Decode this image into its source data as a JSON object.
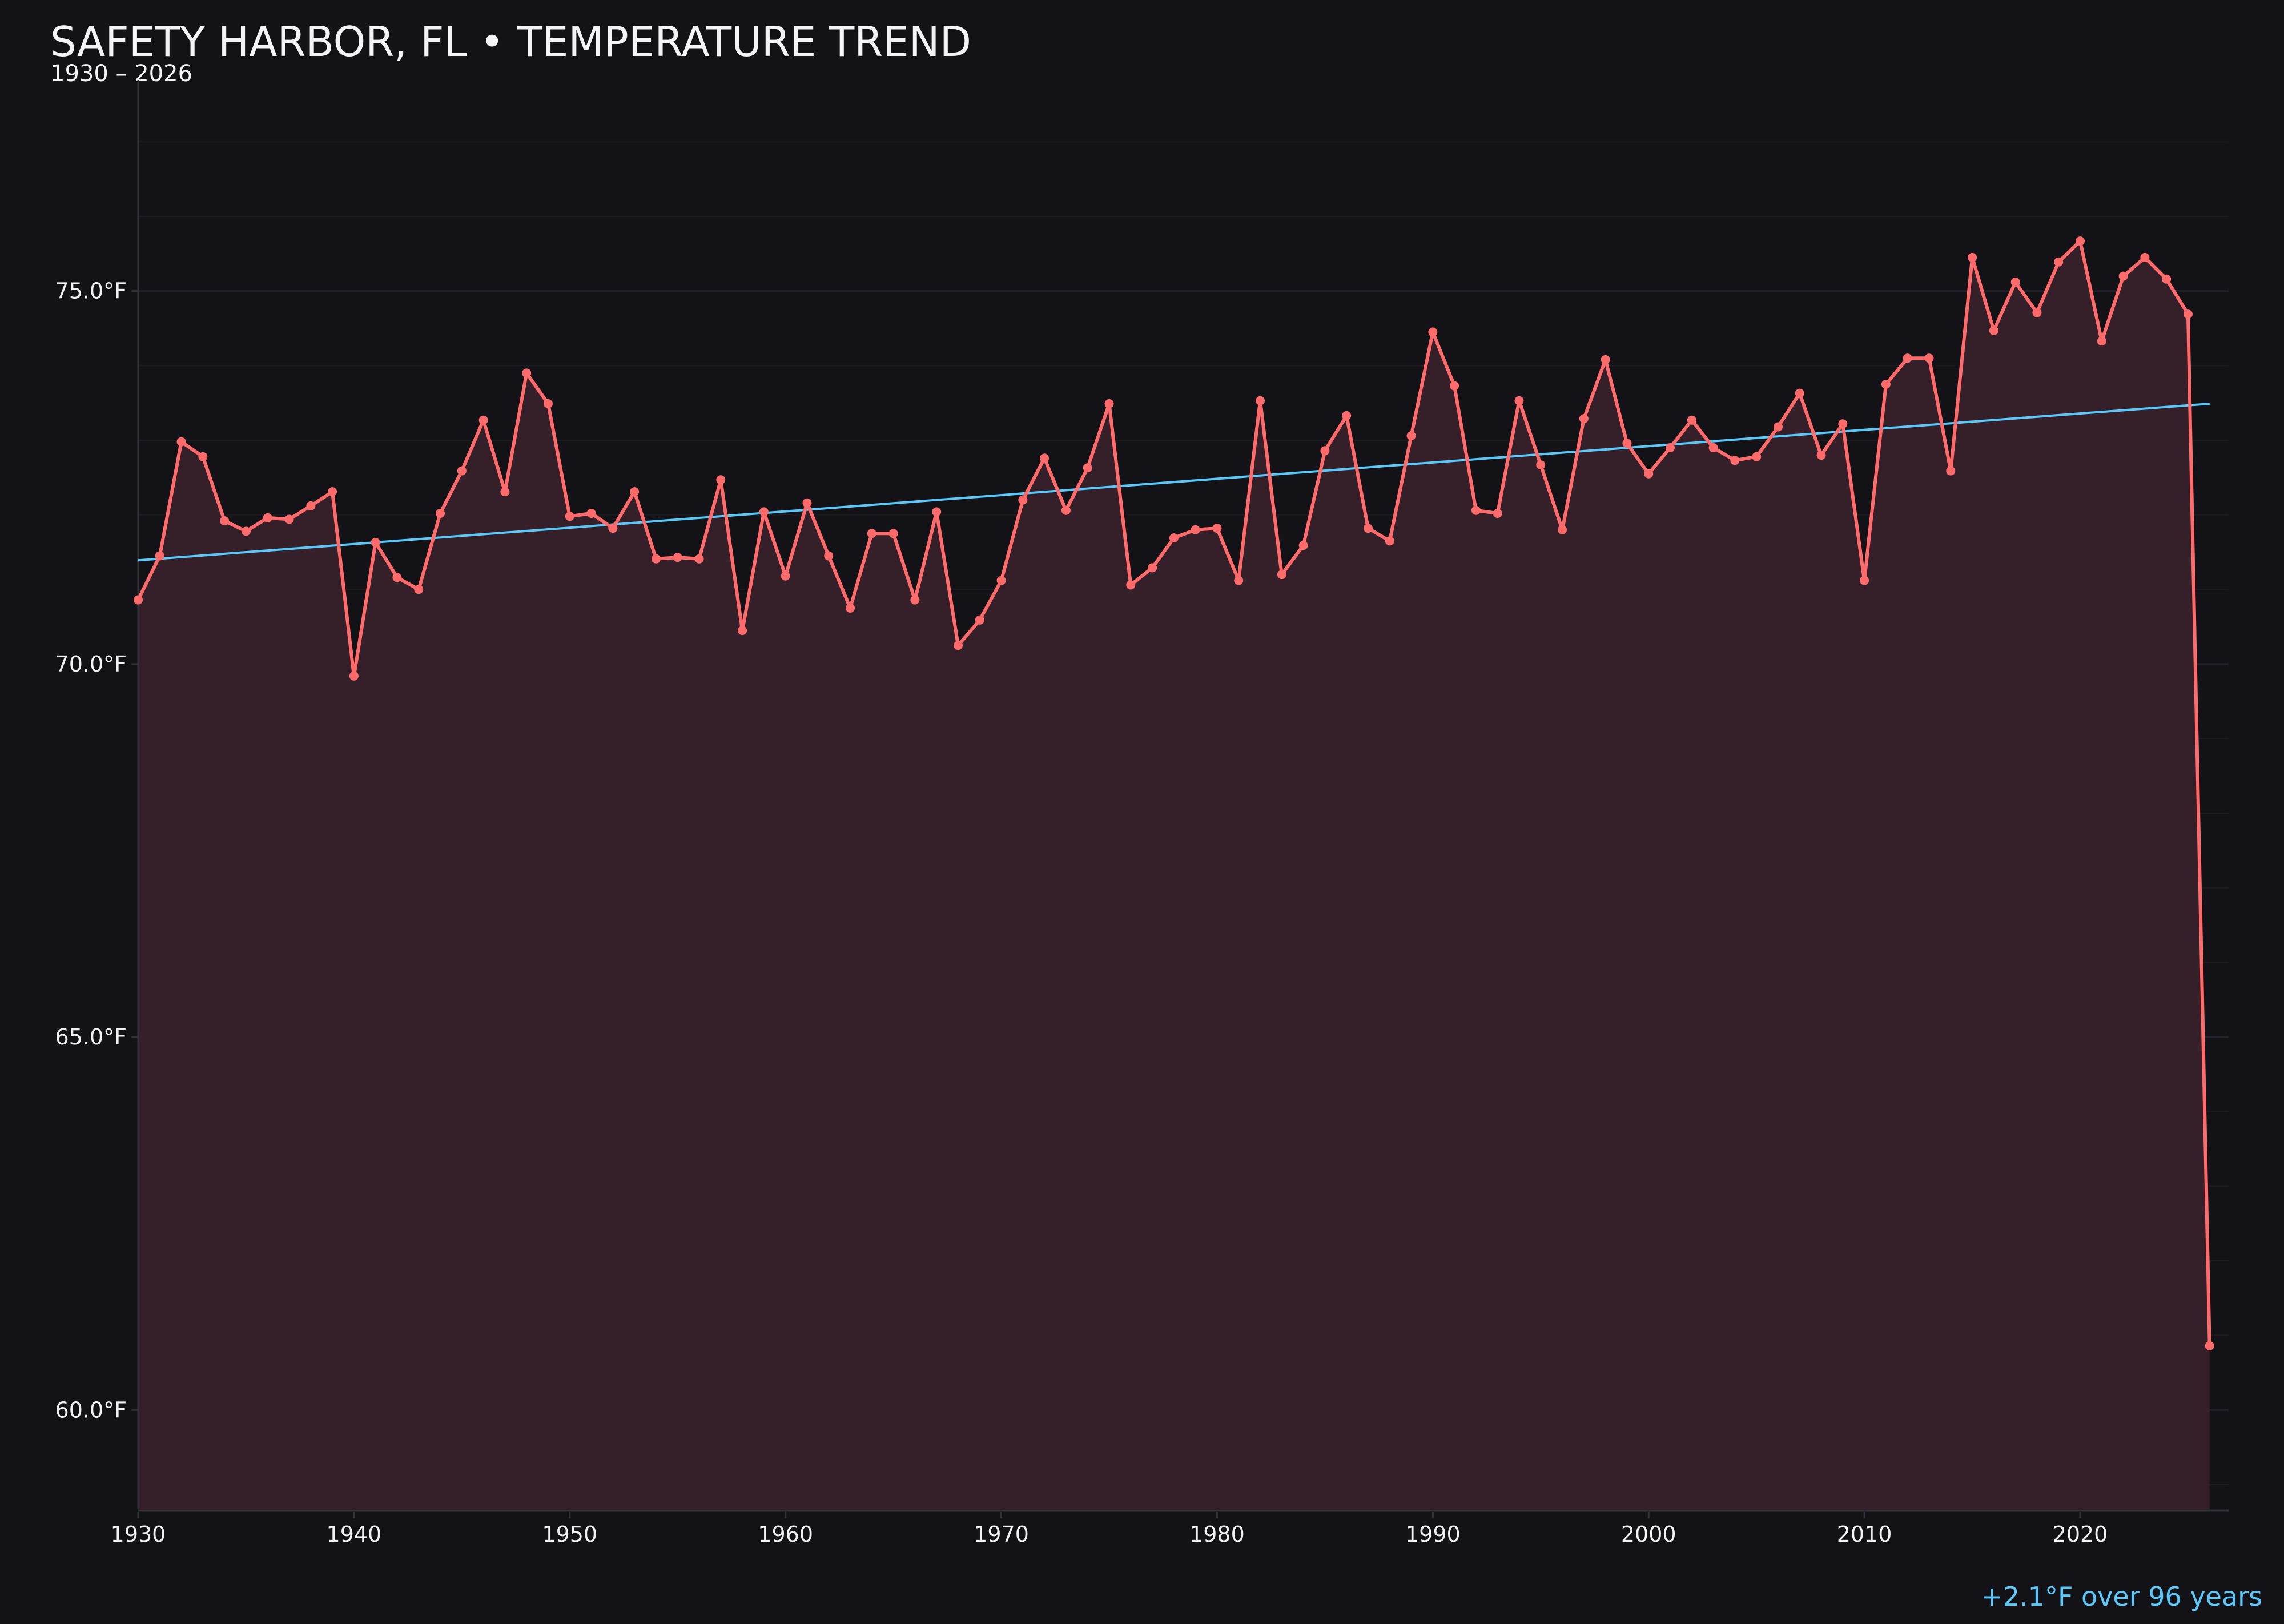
{
  "chart_data": {
    "type": "line",
    "title": "SAFETY HARBOR, FL • TEMPERATURE TREND",
    "subtitle": "1930 – 2026",
    "xlabel": "",
    "ylabel": "",
    "xlim": [
      1930,
      2027
    ],
    "ylim": [
      58.67,
      77.83
    ],
    "grid": true,
    "x_ticks": [
      1930,
      1940,
      1950,
      1960,
      1970,
      1980,
      1990,
      2000,
      2010,
      2020
    ],
    "x_tick_labels": [
      "1930",
      "1940",
      "1950",
      "1960",
      "1970",
      "1980",
      "1990",
      "2000",
      "2010",
      "2020"
    ],
    "y_ticks": [
      60,
      65,
      70,
      75
    ],
    "y_tick_labels": [
      "60.0°F",
      "65.0°F",
      "70.0°F",
      "75.0°F"
    ],
    "x": [
      1930,
      1931,
      1932,
      1933,
      1934,
      1935,
      1936,
      1937,
      1938,
      1939,
      1940,
      1941,
      1942,
      1943,
      1944,
      1945,
      1946,
      1947,
      1948,
      1949,
      1950,
      1951,
      1952,
      1953,
      1954,
      1955,
      1956,
      1957,
      1958,
      1959,
      1960,
      1961,
      1962,
      1963,
      1964,
      1965,
      1966,
      1967,
      1968,
      1969,
      1970,
      1971,
      1972,
      1973,
      1974,
      1975,
      1976,
      1977,
      1978,
      1979,
      1980,
      1981,
      1982,
      1983,
      1984,
      1985,
      1986,
      1987,
      1988,
      1989,
      1990,
      1991,
      1992,
      1993,
      1994,
      1995,
      1996,
      1997,
      1998,
      1999,
      2000,
      2001,
      2002,
      2003,
      2004,
      2005,
      2006,
      2007,
      2008,
      2009,
      2010,
      2011,
      2012,
      2013,
      2014,
      2015,
      2016,
      2017,
      2018,
      2019,
      2020,
      2021,
      2022,
      2023,
      2024,
      2025,
      2026
    ],
    "series": [
      {
        "values": [
          70.86,
          71.45,
          72.98,
          72.78,
          71.92,
          71.78,
          71.96,
          71.94,
          72.12,
          72.31,
          69.84,
          71.63,
          71.16,
          71.0,
          72.02,
          72.59,
          73.27,
          72.31,
          73.9,
          73.49,
          71.98,
          72.02,
          71.82,
          72.31,
          71.41,
          71.43,
          71.41,
          72.47,
          70.45,
          72.04,
          71.18,
          72.16,
          71.45,
          70.75,
          71.75,
          71.75,
          70.86,
          72.04,
          70.25,
          70.59,
          71.12,
          72.2,
          72.76,
          72.06,
          72.63,
          73.49,
          71.06,
          71.29,
          71.69,
          71.8,
          71.82,
          71.12,
          73.53,
          71.2,
          71.59,
          72.86,
          73.33,
          71.82,
          71.65,
          73.06,
          74.45,
          73.73,
          72.06,
          72.02,
          73.53,
          72.67,
          71.8,
          73.29,
          74.08,
          72.96,
          72.55,
          72.9,
          73.27,
          72.9,
          72.73,
          72.78,
          73.18,
          73.63,
          72.8,
          73.22,
          71.12,
          73.75,
          74.1,
          74.1,
          72.59,
          75.45,
          74.47,
          75.12,
          74.71,
          75.39,
          75.67,
          74.33,
          75.2,
          75.45,
          75.16,
          74.69,
          60.86
        ],
        "color": "#ff6b6b",
        "fill": true
      }
    ],
    "trend": {
      "x": [
        1930,
        2026
      ],
      "values": [
        71.39,
        73.49
      ],
      "color": "#5ac8fa"
    },
    "annotation": {
      "text": "+2.1°F over 96 years",
      "color": "#5ac8fa"
    }
  },
  "colors": {
    "background": "#121217",
    "text": "#f4f4f8",
    "fill": "#35202a"
  }
}
